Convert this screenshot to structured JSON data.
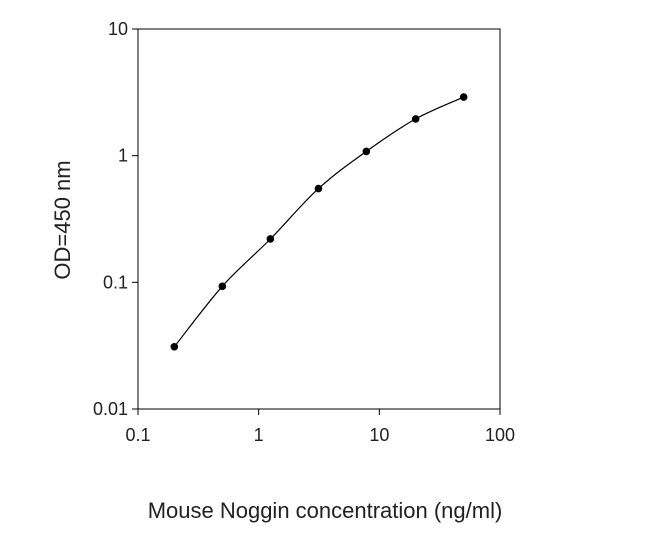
{
  "chart_data": {
    "type": "line",
    "title": "",
    "xlabel": "Mouse Noggin concentration (ng/ml)",
    "ylabel": "OD=450 nm",
    "x_scale": "log",
    "y_scale": "log",
    "xlim": [
      0.1,
      100
    ],
    "ylim": [
      0.01,
      10
    ],
    "x_ticks": [
      "0.1",
      "1",
      "10",
      "100"
    ],
    "y_ticks": [
      "0.01",
      "0.1",
      "1",
      "10"
    ],
    "grid": false,
    "legend": "none",
    "line_color": "#000000",
    "marker": "filled-circle",
    "series": [
      {
        "x": [
          0.2,
          0.5,
          1.25,
          3.13,
          7.8,
          20,
          50
        ],
        "y": [
          0.031,
          0.093,
          0.22,
          0.55,
          1.08,
          1.95,
          2.9
        ]
      }
    ]
  }
}
